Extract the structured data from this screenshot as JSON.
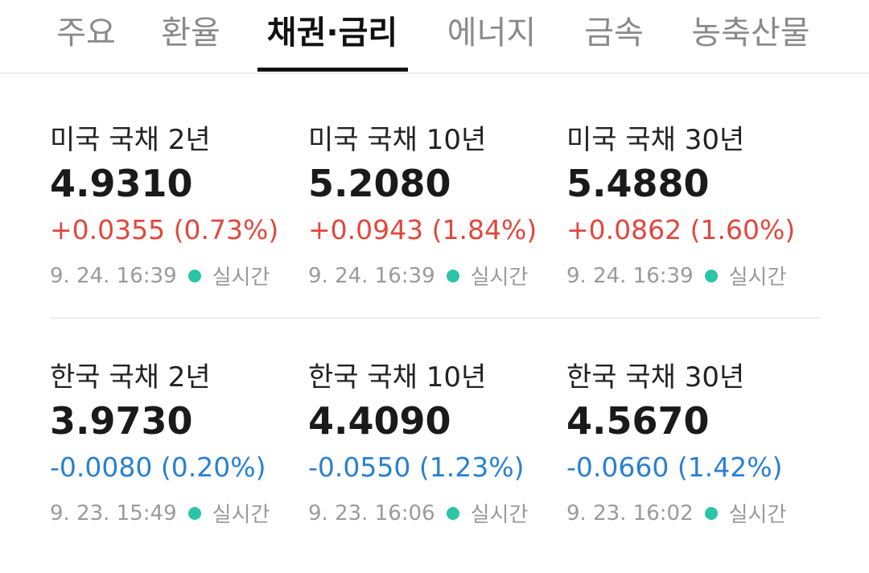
{
  "tabs": [
    "주요",
    "환율",
    "채권·금리",
    "에너지",
    "금속",
    "농축산물"
  ],
  "active_tab": 2,
  "cards": [
    {
      "name": "미국 국채 2년",
      "value": "4.9310",
      "change": "+0.0355 (0.73%)",
      "time": "9. 24. 16:39",
      "status": "실시간",
      "color": "#e2473d"
    },
    {
      "name": "미국 국채 10년",
      "value": "5.2080",
      "change": "+0.0943 (1.84%)",
      "time": "9. 24. 16:39",
      "status": "실시간",
      "color": "#e2473d"
    },
    {
      "name": "미국 국채 30년",
      "value": "5.4880",
      "change": "+0.0862 (1.60%)",
      "time": "9. 24. 16:39",
      "status": "실시간",
      "color": "#e2473d"
    },
    {
      "name": "한국 국채 2년",
      "value": "3.9730",
      "change": "-0.0080 (0.20%)",
      "time": "9. 23. 15:49",
      "status": "실시간",
      "color": "#2a80d2"
    },
    {
      "name": "한국 국채 10년",
      "value": "4.4090",
      "change": "-0.0550 (1.23%)",
      "time": "9. 23. 16:06",
      "status": "실시간",
      "color": "#2a80d2"
    },
    {
      "name": "한국 국채 30년",
      "value": "4.5670",
      "change": "-0.0660 (1.42%)",
      "time": "9. 23. 16:02",
      "status": "실시간",
      "color": "#2a80d2"
    }
  ]
}
